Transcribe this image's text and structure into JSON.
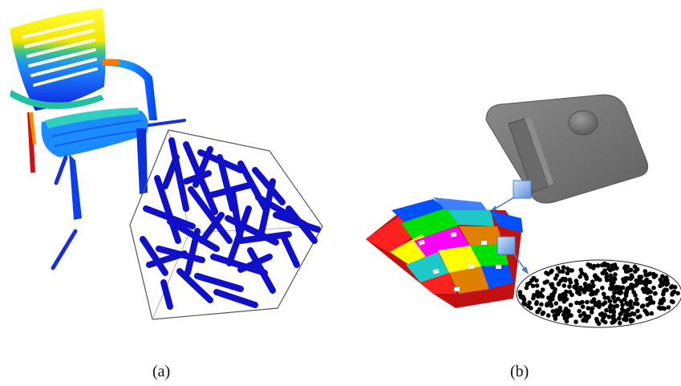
{
  "figure": {
    "panel_a": {
      "label": "(a)",
      "objects": [
        "chair-model",
        "fiber-bundle-in-box"
      ],
      "colors": {
        "chair_gradient": [
          "#ff0000",
          "#ffff00",
          "#00cc66",
          "#1e90ff",
          "#0000cc"
        ],
        "fibers": "#1010c8",
        "box_edges": "#555555"
      }
    },
    "panel_b": {
      "label": "(b)",
      "objects": [
        "gray-plate-part",
        "woven-fabric-patch",
        "particle-ellipse"
      ],
      "colors": {
        "plate": "#7a7a7a",
        "callout_marker": "#6ea0e6",
        "particles": "#000000",
        "weave": [
          "#ff2020",
          "#c01010",
          "#00e000",
          "#1ec8c8",
          "#0050ff",
          "#ff00ff",
          "#ffff00",
          "#e08000"
        ]
      }
    }
  }
}
